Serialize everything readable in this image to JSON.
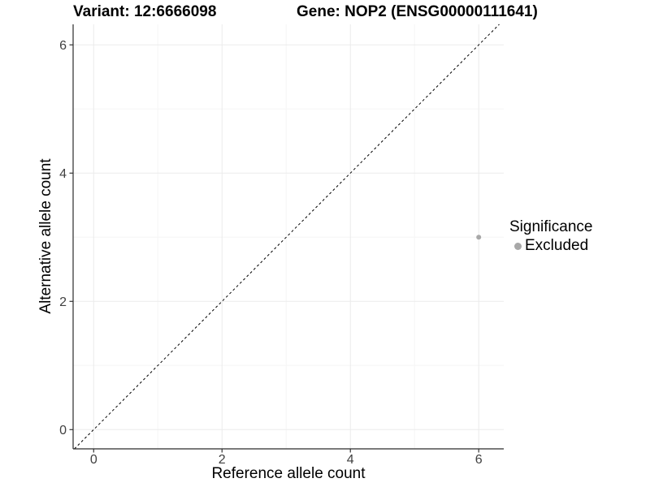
{
  "chart_data": {
    "type": "scatter",
    "title_left": "Variant: 12:6666098",
    "title_right": "Gene: NOP2 (ENSG00000111641)",
    "xlabel": "Reference allele count",
    "ylabel": "Alternative allele count",
    "xlim": [
      -0.32,
      6.39
    ],
    "ylim": [
      -0.3,
      6.32
    ],
    "xticks": [
      0,
      2,
      4,
      6
    ],
    "yticks": [
      0,
      2,
      4,
      6
    ],
    "minor_xticks": [
      1,
      3,
      5
    ],
    "minor_yticks": [
      1,
      3,
      5
    ],
    "grid": true,
    "series": [
      {
        "name": "Excluded",
        "color": "#a8a8a8",
        "points": [
          {
            "x": 6,
            "y": 3
          }
        ]
      }
    ],
    "reference_line": {
      "type": "identity",
      "slope": 1,
      "intercept": 0,
      "style": "dashed",
      "color": "#000000"
    },
    "legend": {
      "title": "Significance",
      "position": "right",
      "entries": [
        {
          "label": "Excluded",
          "color": "#a8a8a8"
        }
      ]
    },
    "colors": {
      "background": "#ffffff",
      "grid_major": "#ebebeb",
      "grid_minor": "#f5f5f5",
      "axis_line": "#2b2b2b",
      "tick_mark": "#333333",
      "tick_label": "#404040",
      "point": "#a8a8a8"
    }
  }
}
